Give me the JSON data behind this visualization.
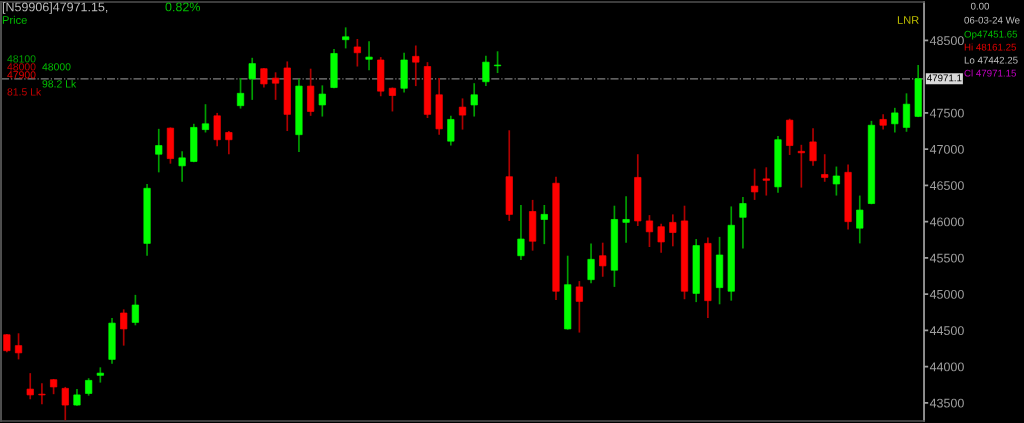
{
  "chart_data": {
    "type": "candlestick",
    "title": "[N59906]47971.15,",
    "subtitle": "0.82%",
    "categories": [
      null,
      null,
      null,
      null,
      null,
      null,
      null,
      null,
      null,
      null,
      null,
      null,
      null,
      null,
      null,
      null,
      null,
      null,
      null,
      null,
      null,
      null,
      null,
      null,
      null,
      null,
      null,
      null,
      null,
      null,
      null,
      null,
      null,
      null,
      null,
      null,
      null,
      null,
      null,
      null,
      null,
      null,
      null,
      null,
      null,
      null,
      null,
      null,
      null,
      null,
      null,
      null,
      null,
      null,
      null,
      null,
      null,
      null,
      null,
      null,
      null,
      null,
      null,
      null,
      null,
      null,
      null,
      null,
      null,
      null,
      null,
      null,
      null,
      null,
      null,
      null,
      null,
      null,
      null
    ],
    "ohlc": [
      [
        44440,
        44450,
        44200,
        44220
      ],
      [
        44290,
        44460,
        44100,
        44190
      ],
      [
        43690,
        43910,
        43550,
        43610
      ],
      [
        43620,
        43770,
        43480,
        43610
      ],
      [
        43820,
        43830,
        43620,
        43720
      ],
      [
        43700,
        43720,
        43260,
        43470
      ],
      [
        43470,
        43690,
        43460,
        43610
      ],
      [
        43630,
        43840,
        43600,
        43810
      ],
      [
        43880,
        43990,
        43780,
        43910
      ],
      [
        44100,
        44670,
        44040,
        44600
      ],
      [
        44740,
        44790,
        44290,
        44520
      ],
      [
        44610,
        44990,
        44570,
        44850
      ],
      [
        45700,
        46520,
        45530,
        46460
      ],
      [
        46930,
        47280,
        46680,
        47050
      ],
      [
        47290,
        47300,
        46800,
        46870
      ],
      [
        46770,
        46970,
        46550,
        46880
      ],
      [
        46830,
        47350,
        46820,
        47300
      ],
      [
        47270,
        47620,
        47230,
        47350
      ],
      [
        47460,
        47500,
        47040,
        47130
      ],
      [
        47230,
        47250,
        46930,
        47130
      ],
      [
        47600,
        47980,
        47560,
        47770
      ],
      [
        47970,
        48260,
        47680,
        48180
      ],
      [
        48110,
        48120,
        47850,
        47900
      ],
      [
        47980,
        48060,
        47680,
        47910
      ],
      [
        48120,
        48210,
        47250,
        47480
      ],
      [
        47200,
        47970,
        46960,
        47870
      ],
      [
        47870,
        48110,
        47460,
        47520
      ],
      [
        47610,
        47880,
        47450,
        47760
      ],
      [
        47850,
        48380,
        47840,
        48320
      ],
      [
        48510,
        48680,
        48390,
        48550
      ],
      [
        48410,
        48520,
        48140,
        48330
      ],
      [
        48240,
        48490,
        48090,
        48270
      ],
      [
        48230,
        48270,
        47730,
        47800
      ],
      [
        47840,
        47850,
        47520,
        47740
      ],
      [
        47840,
        48330,
        47780,
        48230
      ],
      [
        48280,
        48430,
        47870,
        48200
      ],
      [
        48140,
        48200,
        47430,
        47480
      ],
      [
        47750,
        47980,
        47200,
        47280
      ],
      [
        47110,
        47460,
        47050,
        47410
      ],
      [
        47580,
        47700,
        47270,
        47470
      ],
      [
        47610,
        47910,
        47450,
        47750
      ],
      [
        47930,
        48290,
        47870,
        48200
      ],
      [
        48150,
        48350,
        48050,
        48160
      ],
      [
        46620,
        47260,
        46010,
        46100
      ],
      [
        45530,
        46230,
        45470,
        45760
      ],
      [
        46140,
        46300,
        45600,
        45730
      ],
      [
        46030,
        46230,
        45690,
        46100
      ],
      [
        46530,
        46620,
        44920,
        45040
      ],
      [
        44520,
        45530,
        44510,
        45130
      ],
      [
        45100,
        45180,
        44470,
        44900
      ],
      [
        45200,
        45700,
        45150,
        45480
      ],
      [
        45530,
        45710,
        45240,
        45390
      ],
      [
        45330,
        46220,
        45100,
        46030
      ],
      [
        45990,
        46350,
        45710,
        46030
      ],
      [
        46610,
        46930,
        45940,
        46010
      ],
      [
        46010,
        46090,
        45650,
        45860
      ],
      [
        45930,
        45970,
        45570,
        45720
      ],
      [
        45990,
        46100,
        45660,
        45850
      ],
      [
        46010,
        46220,
        44930,
        45040
      ],
      [
        45010,
        45760,
        44890,
        45670
      ],
      [
        45700,
        45780,
        44670,
        44910
      ],
      [
        45090,
        45790,
        44860,
        45540
      ],
      [
        45040,
        46210,
        44910,
        45950
      ],
      [
        46060,
        46340,
        45630,
        46250
      ],
      [
        46490,
        46730,
        46300,
        46410
      ],
      [
        46590,
        46750,
        46360,
        46570
      ],
      [
        46480,
        47180,
        46400,
        47130
      ],
      [
        47400,
        47420,
        46920,
        47050
      ],
      [
        46970,
        47060,
        46470,
        46950
      ],
      [
        47100,
        47290,
        46770,
        46840
      ],
      [
        46650,
        46930,
        46550,
        46610
      ],
      [
        46520,
        46760,
        46360,
        46630
      ],
      [
        46680,
        46790,
        45890,
        46000
      ],
      [
        45910,
        46360,
        45700,
        46160
      ],
      [
        46250,
        47390,
        46240,
        47330
      ],
      [
        47410,
        47480,
        47270,
        47330
      ],
      [
        47350,
        47570,
        47230,
        47500
      ],
      [
        47300,
        47770,
        47240,
        47620
      ],
      [
        47451.65,
        48161.25,
        47442.25,
        47971.15
      ]
    ],
    "ylim": [
      43250,
      49030
    ],
    "yticks": [
      43500,
      44000,
      44500,
      45000,
      45500,
      46000,
      46500,
      47000,
      47500,
      48500
    ],
    "ref_lines": [
      {
        "axis": "y",
        "value": 47971.15,
        "label": "47971.1",
        "color": "#808080"
      }
    ],
    "annotations": [
      "Price",
      "LNR",
      "0.00",
      "06-03-24 We",
      "Op47451.65",
      "Hi 48161.25",
      "Lo 47442.25",
      "Cl 47971.15",
      "48100",
      "48000",
      "47900",
      "48000",
      "98.2 Lk",
      "81.5 Lk"
    ]
  }
}
